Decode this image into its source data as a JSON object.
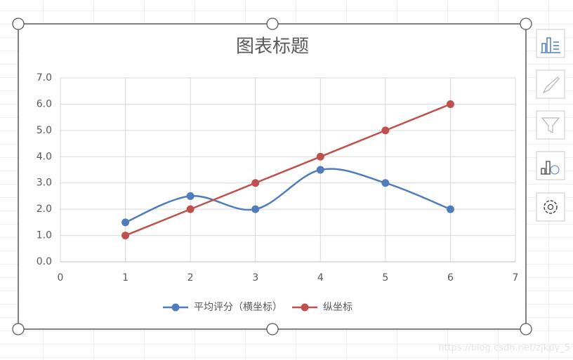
{
  "chart_data": {
    "type": "line",
    "title": "图表标题",
    "x": [
      1,
      2,
      3,
      4,
      5,
      6
    ],
    "series": [
      {
        "name": "平均评分（横坐标）",
        "color": "#4f7dbb",
        "smooth": true,
        "values": [
          1.5,
          2.5,
          2.0,
          3.5,
          3.0,
          2.0
        ]
      },
      {
        "name": "纵坐标",
        "color": "#c0504d",
        "smooth": false,
        "values": [
          1,
          2,
          3,
          4,
          5,
          6
        ]
      }
    ],
    "xlim": [
      0,
      7
    ],
    "xticks": [
      0,
      1,
      2,
      3,
      4,
      5,
      6,
      7
    ],
    "ylim": [
      0,
      7
    ],
    "yticks": [
      {
        "value": 0,
        "label": "0.0"
      },
      {
        "value": 1,
        "label": "1.0"
      },
      {
        "value": 2,
        "label": "2.0"
      },
      {
        "value": 3,
        "label": "3.0"
      },
      {
        "value": 4,
        "label": "4.0"
      },
      {
        "value": 5,
        "label": "5.0"
      },
      {
        "value": 6,
        "label": "6.0"
      },
      {
        "value": 7,
        "label": "7.0"
      }
    ],
    "grid": true,
    "legend": "bottom"
  },
  "watermark": "https://blog.csdn.net/zjkpy_5"
}
